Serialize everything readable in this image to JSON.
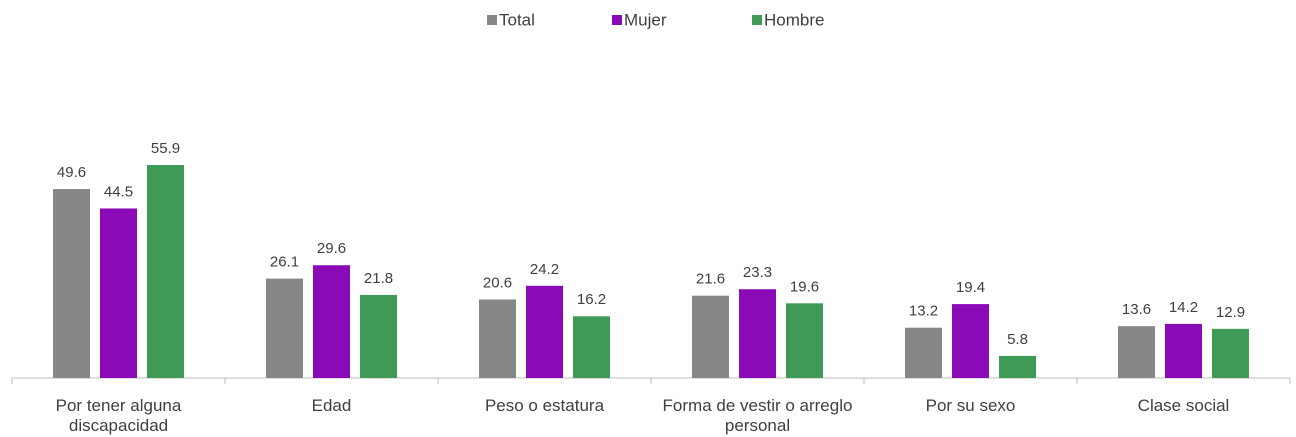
{
  "chart_data": {
    "type": "bar",
    "categories": [
      "Por tener alguna discapacidad",
      "Edad",
      "Peso o estatura",
      "Forma de vestir o arreglo personal",
      "Por su sexo",
      "Clase social"
    ],
    "series": [
      {
        "name": "Total",
        "color": "#878787",
        "values": [
          49.6,
          26.1,
          20.6,
          21.6,
          13.2,
          13.6
        ]
      },
      {
        "name": "Mujer",
        "color": "#8b0ab8",
        "values": [
          44.5,
          29.6,
          24.2,
          23.3,
          19.4,
          14.2
        ]
      },
      {
        "name": "Hombre",
        "color": "#3f9a56",
        "values": [
          55.9,
          21.8,
          16.2,
          19.6,
          5.8,
          12.9
        ]
      }
    ],
    "legend": "top"
  }
}
